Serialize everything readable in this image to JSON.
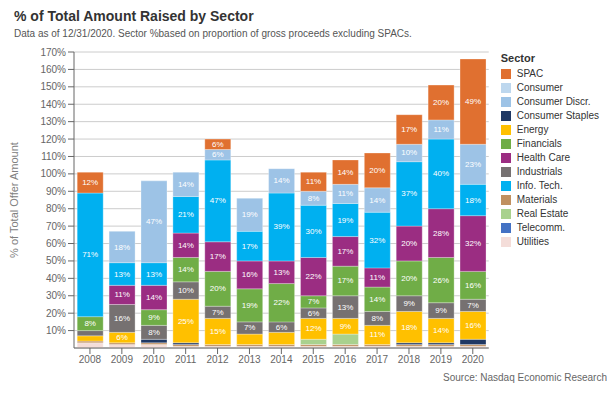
{
  "chart_data": {
    "type": "bar",
    "stacked": true,
    "title": "% of Total Amount Raised by Sector",
    "subtitle": "Data as of 12/31/2020. Sector %based on proportion of gross proceeds excluding SPACs.",
    "annotations": [
      "Source: Nasdaq Economic Research"
    ],
    "y_label": "% of Total Offer Amount",
    "legend_title": "Sector",
    "legend": "right",
    "grid": true,
    "categories": [
      "2008",
      "2009",
      "2010",
      "2011",
      "2012",
      "2013",
      "2014",
      "2015",
      "2016",
      "2017",
      "2018",
      "2019",
      "2020"
    ],
    "ylim": [
      0,
      170
    ],
    "yticks": [
      {
        "value": 10,
        "label": "10%"
      },
      {
        "value": 20,
        "label": "20%"
      },
      {
        "value": 30,
        "label": "30%"
      },
      {
        "value": 40,
        "label": "40%"
      },
      {
        "value": 50,
        "label": "50%"
      },
      {
        "value": 60,
        "label": "60%"
      },
      {
        "value": 70,
        "label": "70%"
      },
      {
        "value": 80,
        "label": "80%"
      },
      {
        "value": 90,
        "label": "90%"
      },
      {
        "value": 100,
        "label": "100%"
      },
      {
        "value": 110,
        "label": "110%"
      },
      {
        "value": 120,
        "label": "120%"
      },
      {
        "value": 130,
        "label": "130%"
      },
      {
        "value": 140,
        "label": "140%"
      },
      {
        "value": 150,
        "label": "150%"
      },
      {
        "value": 160,
        "label": "160%"
      },
      {
        "value": 170,
        "label": "170%"
      }
    ],
    "legend_order": [
      "SPAC",
      "Consumer",
      "Consumer Discr.",
      "Consumer Staples",
      "Energy",
      "Financials",
      "Health Care",
      "Industrials",
      "Info. Tech.",
      "Materials",
      "Real Estate",
      "Telecomm.",
      "Utilities"
    ],
    "series": [
      {
        "name": "Utilities",
        "color": "#F4DDD9",
        "values": [
          3,
          2,
          2,
          1,
          1,
          1,
          1,
          1,
          1,
          1,
          1,
          1,
          1
        ]
      },
      {
        "name": "Materials",
        "color": "#C09060",
        "values": [
          1,
          1,
          1,
          1,
          1,
          1,
          1,
          1,
          1,
          1,
          1,
          1,
          1
        ]
      },
      {
        "name": "Real Estate",
        "color": "#A9D18E",
        "values": [
          0,
          0,
          0,
          0,
          0,
          0,
          0,
          3,
          6,
          0,
          0,
          0,
          0
        ]
      },
      {
        "name": "Telecomm.",
        "color": "#4472C4",
        "values": [
          0,
          0,
          0,
          0,
          0,
          0,
          0,
          0,
          0,
          0,
          0,
          0,
          0
        ]
      },
      {
        "name": "Consumer Staples",
        "color": "#1F3864",
        "values": [
          0,
          0,
          2,
          1,
          0,
          0,
          0,
          0,
          0,
          0,
          1,
          1,
          3
        ]
      },
      {
        "name": "Energy",
        "color": "#FFC000",
        "values": [
          3,
          6,
          0,
          25,
          15,
          6,
          7,
          12,
          9,
          11,
          18,
          14,
          16
        ],
        "data_labels": true,
        "value_labels": [
          null,
          "6%",
          null,
          "25%",
          "15%",
          null,
          null,
          "12%",
          "9%",
          "11%",
          "18%",
          "14%",
          "16%"
        ]
      },
      {
        "name": "Industrials",
        "color": "#767171",
        "values": [
          3,
          16,
          8,
          10,
          7,
          7,
          6,
          6,
          13,
          8,
          9,
          9,
          7
        ],
        "data_labels": true,
        "value_labels": [
          null,
          "16%",
          "8%",
          "10%",
          "7%",
          "7%",
          "6%",
          "6%",
          "13%",
          "8%",
          "9%",
          "9%",
          "7%"
        ]
      },
      {
        "name": "Financials",
        "color": "#70AD47",
        "values": [
          8,
          0,
          9,
          14,
          20,
          19,
          22,
          7,
          17,
          14,
          20,
          26,
          16
        ],
        "data_labels": true,
        "value_labels": [
          "8%",
          null,
          "9%",
          "14%",
          "20%",
          "19%",
          "22%",
          "7%",
          "17%",
          "14%",
          "20%",
          "26%",
          "16%"
        ]
      },
      {
        "name": "Health Care",
        "color": "#9B2D82",
        "values": [
          0,
          11,
          14,
          14,
          17,
          16,
          13,
          22,
          17,
          11,
          20,
          28,
          32
        ],
        "data_labels": true,
        "value_labels": [
          null,
          "11%",
          "14%",
          "14%",
          "17%",
          "16%",
          "13%",
          "22%",
          "17%",
          "11%",
          "20%",
          "28%",
          "32%"
        ]
      },
      {
        "name": "Info. Tech.",
        "color": "#00B0F0",
        "values": [
          71,
          13,
          13,
          21,
          47,
          17,
          39,
          30,
          19,
          32,
          37,
          40,
          18
        ],
        "data_labels": true,
        "value_labels": [
          "71%",
          "13%",
          "13%",
          "21%",
          "47%",
          "17%",
          "39%",
          "30%",
          "19%",
          "32%",
          "37%",
          "40%",
          "18%"
        ]
      },
      {
        "name": "Consumer Discr.",
        "color": "#9DC3E6",
        "values": [
          0,
          18,
          47,
          14,
          6,
          19,
          14,
          8,
          11,
          14,
          10,
          11,
          23
        ],
        "data_labels": true,
        "value_labels": [
          null,
          "18%",
          "47%",
          "14%",
          "6%",
          "19%",
          "14%",
          "8%",
          "11%",
          "14%",
          "10%",
          "11%",
          "23%"
        ]
      },
      {
        "name": "Consumer",
        "color": "#BDD7EE",
        "values": [
          0,
          0,
          0,
          0,
          0,
          0,
          0,
          0,
          0,
          0,
          0,
          0,
          0
        ]
      },
      {
        "name": "SPAC",
        "color": "#E07030",
        "values": [
          12,
          0,
          0,
          0,
          6,
          0,
          0,
          11,
          14,
          20,
          17,
          20,
          49
        ],
        "data_labels": true,
        "value_labels": [
          "12%",
          null,
          null,
          null,
          "6%",
          null,
          null,
          "11%",
          "14%",
          "20%",
          "17%",
          "20%",
          "49%"
        ]
      }
    ]
  }
}
